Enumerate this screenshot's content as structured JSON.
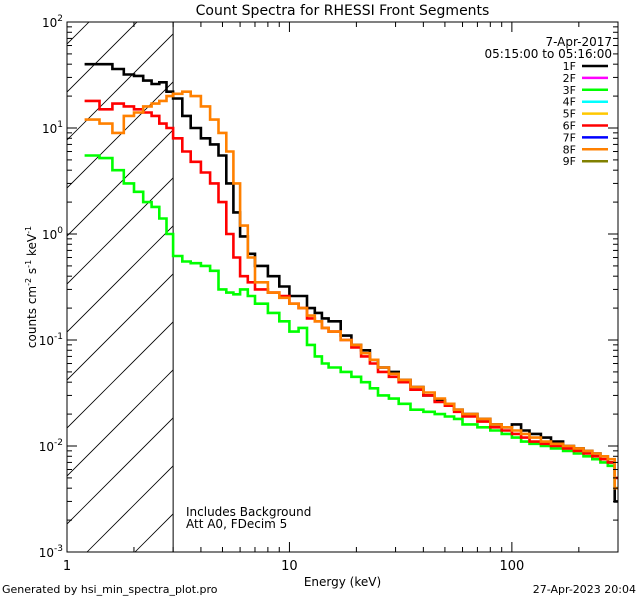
{
  "chart_data": {
    "type": "line",
    "title": "Count Spectra for RHESSI Front Segments",
    "xlabel": "Energy (keV)",
    "ylabel": "counts cm",
    "ylabel_parts": [
      "counts cm",
      "-2",
      " s",
      "-1",
      " keV",
      "-1"
    ],
    "xscale": "log",
    "yscale": "log",
    "xlim": [
      1,
      300
    ],
    "ylim": [
      0.001,
      100
    ],
    "x_ticks": [
      {
        "value": 1,
        "label": "1"
      },
      {
        "value": 10,
        "label": "10"
      },
      {
        "value": 100,
        "label": "100"
      }
    ],
    "y_ticks": [
      {
        "value": 0.001,
        "base": "10",
        "exp": "-3"
      },
      {
        "value": 0.01,
        "base": "10",
        "exp": "-2"
      },
      {
        "value": 0.1,
        "base": "10",
        "exp": "-1"
      },
      {
        "value": 1,
        "base": "10",
        "exp": "0"
      },
      {
        "value": 10,
        "base": "10",
        "exp": "1"
      },
      {
        "value": 100,
        "base": "10",
        "exp": "2"
      }
    ],
    "hatched_region": {
      "from": 1,
      "to": 3
    },
    "vertical_line_at": 3,
    "date": "7-Apr-2017",
    "time_range": "05:15:00 to 05:16:00",
    "annotations": [
      "Includes Background",
      "Att A0, FDecim 5"
    ],
    "legend": [
      {
        "name": "1F",
        "color": "#000000"
      },
      {
        "name": "2F",
        "color": "#ff00ff"
      },
      {
        "name": "3F",
        "color": "#00ff00"
      },
      {
        "name": "4F",
        "color": "#00ffff"
      },
      {
        "name": "5F",
        "color": "#ffc800"
      },
      {
        "name": "6F",
        "color": "#ff0000"
      },
      {
        "name": "7F",
        "color": "#0000ff"
      },
      {
        "name": "8F",
        "color": "#ff8000"
      },
      {
        "name": "9F",
        "color": "#808000"
      }
    ],
    "series": [
      {
        "name": "1F",
        "color": "#000000",
        "x": [
          1.2,
          1.4,
          1.6,
          1.8,
          2.0,
          2.2,
          2.4,
          2.6,
          2.8,
          3.0,
          3.3,
          3.6,
          4.0,
          4.4,
          4.8,
          5.2,
          5.6,
          6.0,
          6.5,
          7,
          8,
          9,
          10,
          11,
          12,
          13,
          14,
          15,
          17,
          19,
          21,
          23,
          25,
          28,
          31,
          35,
          40,
          45,
          50,
          55,
          60,
          70,
          80,
          90,
          100,
          110,
          120,
          135,
          150,
          170,
          190,
          210,
          230,
          250,
          270,
          290
        ],
        "y": [
          40,
          40,
          36,
          32,
          31,
          28,
          26,
          27,
          22,
          19,
          13,
          10,
          8,
          7,
          5.5,
          3,
          1.6,
          0.95,
          0.65,
          0.5,
          0.4,
          0.32,
          0.26,
          0.26,
          0.2,
          0.18,
          0.16,
          0.15,
          0.11,
          0.09,
          0.08,
          0.065,
          0.055,
          0.05,
          0.042,
          0.036,
          0.03,
          0.027,
          0.025,
          0.022,
          0.02,
          0.018,
          0.016,
          0.015,
          0.016,
          0.014,
          0.013,
          0.012,
          0.011,
          0.01,
          0.0095,
          0.009,
          0.0085,
          0.008,
          0.007,
          0.003
        ]
      },
      {
        "name": "3F",
        "color": "#00ff00",
        "x": [
          1.2,
          1.4,
          1.6,
          1.8,
          2.0,
          2.2,
          2.4,
          2.6,
          2.8,
          3.0,
          3.3,
          3.6,
          4.0,
          4.4,
          4.8,
          5.2,
          5.6,
          6.0,
          6.5,
          7,
          8,
          9,
          10,
          11,
          12,
          13,
          14,
          15,
          17,
          19,
          21,
          23,
          25,
          28,
          31,
          35,
          40,
          45,
          50,
          55,
          60,
          70,
          80,
          90,
          100,
          110,
          120,
          135,
          150,
          170,
          190,
          210,
          230,
          250,
          270,
          290
        ],
        "y": [
          5.5,
          5.2,
          4.0,
          3.0,
          2.5,
          2.0,
          1.8,
          1.4,
          1.0,
          0.62,
          0.55,
          0.53,
          0.5,
          0.45,
          0.3,
          0.28,
          0.27,
          0.3,
          0.26,
          0.22,
          0.18,
          0.15,
          0.12,
          0.13,
          0.09,
          0.07,
          0.06,
          0.055,
          0.05,
          0.045,
          0.04,
          0.035,
          0.03,
          0.028,
          0.025,
          0.022,
          0.021,
          0.02,
          0.019,
          0.018,
          0.016,
          0.015,
          0.014,
          0.013,
          0.012,
          0.011,
          0.0105,
          0.01,
          0.0095,
          0.009,
          0.0085,
          0.008,
          0.0075,
          0.007,
          0.0065,
          0.004
        ]
      },
      {
        "name": "6F",
        "color": "#ff0000",
        "x": [
          1.2,
          1.4,
          1.6,
          1.8,
          2.0,
          2.2,
          2.4,
          2.6,
          2.8,
          3.0,
          3.3,
          3.6,
          4.0,
          4.4,
          4.8,
          5.2,
          5.6,
          6.0,
          6.5,
          7,
          8,
          9,
          10,
          11,
          12,
          13,
          14,
          15,
          17,
          19,
          21,
          23,
          25,
          28,
          31,
          35,
          40,
          45,
          50,
          55,
          60,
          70,
          80,
          90,
          100,
          110,
          120,
          135,
          150,
          170,
          190,
          210,
          230,
          250,
          270,
          290
        ],
        "y": [
          18,
          15,
          17,
          16,
          15,
          14,
          13,
          11,
          10,
          8,
          6,
          4.8,
          3.8,
          3.0,
          2.0,
          1.0,
          0.6,
          0.4,
          0.35,
          0.3,
          0.28,
          0.26,
          0.22,
          0.2,
          0.16,
          0.15,
          0.13,
          0.12,
          0.1,
          0.085,
          0.07,
          0.06,
          0.05,
          0.045,
          0.04,
          0.034,
          0.03,
          0.026,
          0.024,
          0.021,
          0.019,
          0.017,
          0.015,
          0.014,
          0.013,
          0.012,
          0.011,
          0.0105,
          0.01,
          0.0095,
          0.009,
          0.0085,
          0.008,
          0.0075,
          0.007,
          0.005
        ]
      },
      {
        "name": "8F",
        "color": "#ff8000",
        "x": [
          1.2,
          1.4,
          1.6,
          1.8,
          2.0,
          2.2,
          2.4,
          2.6,
          2.8,
          3.0,
          3.3,
          3.6,
          4.0,
          4.4,
          4.8,
          5.2,
          5.6,
          6.0,
          6.5,
          7,
          8,
          9,
          10,
          11,
          12,
          13,
          14,
          15,
          17,
          19,
          21,
          23,
          25,
          28,
          31,
          35,
          40,
          45,
          50,
          55,
          60,
          70,
          80,
          90,
          100,
          110,
          120,
          135,
          150,
          170,
          190,
          210,
          230,
          250,
          270,
          290
        ],
        "y": [
          12,
          11,
          9,
          13,
          14,
          16,
          17,
          18,
          20,
          21,
          22,
          20,
          16,
          12,
          9,
          6,
          3,
          1.2,
          0.6,
          0.35,
          0.28,
          0.25,
          0.22,
          0.2,
          0.17,
          0.15,
          0.13,
          0.12,
          0.1,
          0.09,
          0.075,
          0.065,
          0.055,
          0.048,
          0.042,
          0.036,
          0.032,
          0.028,
          0.025,
          0.022,
          0.02,
          0.018,
          0.016,
          0.015,
          0.014,
          0.013,
          0.012,
          0.011,
          0.0105,
          0.01,
          0.0095,
          0.009,
          0.0085,
          0.008,
          0.0075,
          0.004
        ]
      }
    ]
  },
  "footer": {
    "left": "Generated by hsi_min_spectra_plot.pro",
    "right": "27-Apr-2023 20:04"
  }
}
